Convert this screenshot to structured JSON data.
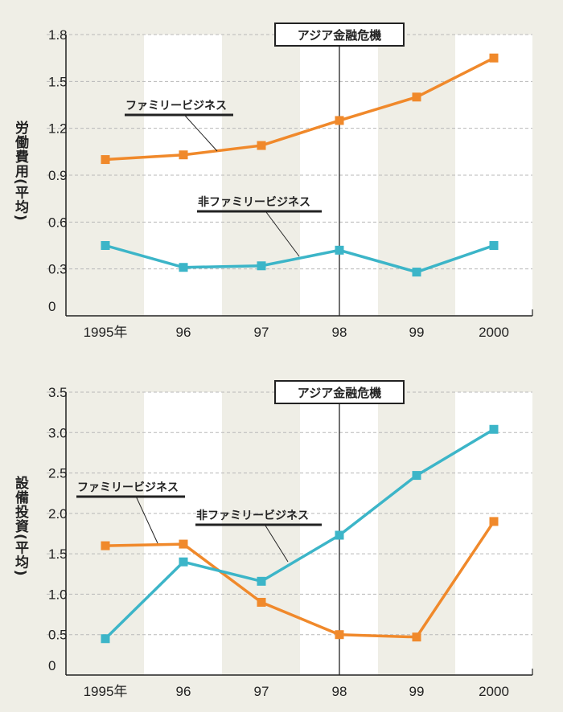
{
  "chart_data": [
    {
      "type": "line",
      "ylabel": "労働費用(平均)",
      "categories": [
        "1995年",
        "96",
        "97",
        "98",
        "99",
        "2000"
      ],
      "yticks": [
        "0",
        "0.3",
        "0.6",
        "0.9",
        "1.2",
        "1.5",
        "1.8"
      ],
      "ylim": [
        0,
        1.8
      ],
      "grid": "horizontal dashed",
      "annotation": "アジア金融危機",
      "series": [
        {
          "name": "ファミリービジネス",
          "color": "#f0892b",
          "values": [
            1.0,
            1.03,
            1.09,
            1.25,
            1.4,
            1.65
          ]
        },
        {
          "name": "非ファミリービジネス",
          "color": "#3cb5c8",
          "values": [
            0.45,
            0.31,
            0.32,
            0.42,
            0.28,
            0.45
          ]
        }
      ]
    },
    {
      "type": "line",
      "ylabel": "設備投資(平均)",
      "categories": [
        "1995年",
        "96",
        "97",
        "98",
        "99",
        "2000"
      ],
      "yticks": [
        "0",
        "0.5",
        "1.0",
        "1.5",
        "2.0",
        "2.5",
        "3.0",
        "3.5"
      ],
      "ylim": [
        0,
        3.5
      ],
      "grid": "horizontal dashed",
      "annotation": "アジア金融危機",
      "series": [
        {
          "name": "ファミリービジネス",
          "color": "#f0892b",
          "values": [
            1.6,
            1.62,
            0.9,
            0.5,
            0.47,
            1.9
          ]
        },
        {
          "name": "非ファミリービジネス",
          "color": "#3cb5c8",
          "values": [
            0.45,
            1.4,
            1.16,
            1.73,
            2.47,
            3.04
          ]
        }
      ]
    }
  ]
}
